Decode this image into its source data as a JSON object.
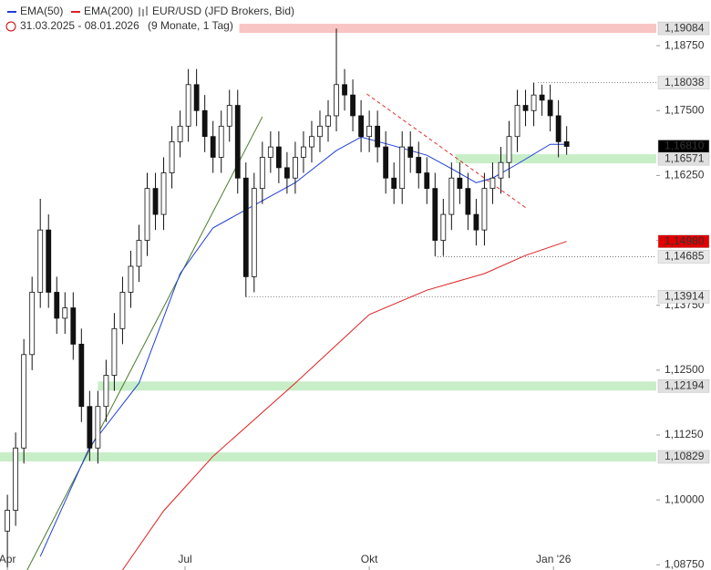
{
  "chart_data": {
    "type": "candlestick",
    "title": "EUR/USD (JFD Brokers, Bid)",
    "date_range": "31.03.2025 - 08.01.2026",
    "period": "(9 Monate, 1 Tag)",
    "xlim": [
      -0.9,
      78.9
    ],
    "ylim": [
      1.0865,
      1.1963
    ],
    "xticks": [
      {
        "value": 0,
        "label": "Apr"
      },
      {
        "value": 21.6,
        "label": "Jul"
      },
      {
        "value": 44,
        "label": "Okt"
      },
      {
        "value": 66.4,
        "label": "Jan '26"
      }
    ],
    "yticks": [
      {
        "value": 1.0875,
        "label": "1,08750"
      },
      {
        "value": 1.1,
        "label": "1,10000"
      },
      {
        "value": 1.1125,
        "label": "1,11250"
      },
      {
        "value": 1.125,
        "label": "1,12500"
      },
      {
        "value": 1.1375,
        "label": "1,13750"
      },
      {
        "value": 1.15,
        "label": "1,15000"
      },
      {
        "value": 1.1625,
        "label": "1,16250"
      },
      {
        "value": 1.175,
        "label": "1,17500"
      },
      {
        "value": 1.1875,
        "label": "1,18750"
      }
    ],
    "ohlc": [
      [
        1.094,
        1.101,
        1.087,
        1.098
      ],
      [
        1.098,
        1.113,
        1.095,
        1.11
      ],
      [
        1.11,
        1.131,
        1.107,
        1.128
      ],
      [
        1.128,
        1.143,
        1.125,
        1.14
      ],
      [
        1.14,
        1.158,
        1.137,
        1.152
      ],
      [
        1.152,
        1.155,
        1.137,
        1.14
      ],
      [
        1.14,
        1.143,
        1.132,
        1.135
      ],
      [
        1.135,
        1.14,
        1.132,
        1.137
      ],
      [
        1.137,
        1.14,
        1.127,
        1.13
      ],
      [
        1.13,
        1.133,
        1.115,
        1.118
      ],
      [
        1.118,
        1.121,
        1.1075,
        1.11
      ],
      [
        1.11,
        1.121,
        1.107,
        1.118
      ],
      [
        1.118,
        1.127,
        1.115,
        1.124
      ],
      [
        1.124,
        1.136,
        1.121,
        1.133
      ],
      [
        1.133,
        1.143,
        1.13,
        1.14
      ],
      [
        1.14,
        1.148,
        1.137,
        1.145
      ],
      [
        1.145,
        1.153,
        1.142,
        1.15
      ],
      [
        1.15,
        1.163,
        1.147,
        1.16
      ],
      [
        1.16,
        1.163,
        1.152,
        1.155
      ],
      [
        1.155,
        1.166,
        1.152,
        1.163
      ],
      [
        1.163,
        1.172,
        1.16,
        1.169
      ],
      [
        1.169,
        1.175,
        1.166,
        1.172
      ],
      [
        1.172,
        1.183,
        1.169,
        1.18
      ],
      [
        1.18,
        1.183,
        1.172,
        1.175
      ],
      [
        1.175,
        1.178,
        1.167,
        1.17
      ],
      [
        1.17,
        1.173,
        1.163,
        1.166
      ],
      [
        1.166,
        1.175,
        1.163,
        1.172
      ],
      [
        1.172,
        1.179,
        1.169,
        1.176
      ],
      [
        1.176,
        1.179,
        1.159,
        1.162
      ],
      [
        1.162,
        1.165,
        1.1391,
        1.143
      ],
      [
        1.143,
        1.163,
        1.14,
        1.16
      ],
      [
        1.16,
        1.169,
        1.157,
        1.166
      ],
      [
        1.166,
        1.171,
        1.163,
        1.168
      ],
      [
        1.168,
        1.171,
        1.161,
        1.164
      ],
      [
        1.164,
        1.167,
        1.159,
        1.162
      ],
      [
        1.162,
        1.169,
        1.159,
        1.166
      ],
      [
        1.166,
        1.171,
        1.163,
        1.168
      ],
      [
        1.168,
        1.173,
        1.165,
        1.17
      ],
      [
        1.17,
        1.175,
        1.167,
        1.172
      ],
      [
        1.172,
        1.177,
        1.169,
        1.174
      ],
      [
        1.174,
        1.1908,
        1.171,
        1.18
      ],
      [
        1.18,
        1.183,
        1.175,
        1.178
      ],
      [
        1.178,
        1.181,
        1.171,
        1.174
      ],
      [
        1.174,
        1.177,
        1.167,
        1.17
      ],
      [
        1.17,
        1.175,
        1.167,
        1.172
      ],
      [
        1.172,
        1.175,
        1.165,
        1.168
      ],
      [
        1.168,
        1.171,
        1.159,
        1.162
      ],
      [
        1.162,
        1.165,
        1.157,
        1.16
      ],
      [
        1.16,
        1.171,
        1.157,
        1.168
      ],
      [
        1.168,
        1.171,
        1.163,
        1.166
      ],
      [
        1.166,
        1.169,
        1.16,
        1.163
      ],
      [
        1.163,
        1.166,
        1.157,
        1.16
      ],
      [
        1.16,
        1.163,
        1.1469,
        1.15
      ],
      [
        1.15,
        1.158,
        1.147,
        1.155
      ],
      [
        1.155,
        1.165,
        1.152,
        1.162
      ],
      [
        1.162,
        1.165,
        1.157,
        1.16
      ],
      [
        1.16,
        1.163,
        1.152,
        1.155
      ],
      [
        1.155,
        1.158,
        1.149,
        1.152
      ],
      [
        1.152,
        1.163,
        1.149,
        1.16
      ],
      [
        1.16,
        1.165,
        1.157,
        1.162
      ],
      [
        1.162,
        1.168,
        1.159,
        1.165
      ],
      [
        1.165,
        1.173,
        1.162,
        1.17
      ],
      [
        1.17,
        1.179,
        1.167,
        1.176
      ],
      [
        1.176,
        1.179,
        1.172,
        1.175
      ],
      [
        1.175,
        1.1804,
        1.172,
        1.178
      ],
      [
        1.178,
        1.18,
        1.174,
        1.177
      ],
      [
        1.177,
        1.18,
        1.171,
        1.174
      ],
      [
        1.174,
        1.177,
        1.166,
        1.169
      ],
      [
        1.169,
        1.172,
        1.1665,
        1.1681
      ]
    ],
    "series": [
      {
        "name": "EMA(50)",
        "color": "#1f3fd6",
        "x": [
          4,
          10,
          16,
          21,
          25,
          29,
          35,
          40,
          43,
          47,
          51,
          54,
          57,
          59,
          62,
          66,
          68
        ],
        "values": [
          1.0891,
          1.1102,
          1.1225,
          1.1436,
          1.1524,
          1.1559,
          1.1611,
          1.1673,
          1.1699,
          1.1682,
          1.1664,
          1.1638,
          1.1611,
          1.162,
          1.1647,
          1.1685,
          1.1685
        ]
      },
      {
        "name": "EMA(200)",
        "color": "#e02020",
        "x": [
          14,
          19,
          25,
          35,
          44,
          51,
          58,
          63,
          68
        ],
        "values": [
          1.0865,
          1.0979,
          1.1084,
          1.1225,
          1.1357,
          1.1404,
          1.1436,
          1.1471,
          1.1498
        ]
      }
    ],
    "trendlines": [
      {
        "color": "#4a7a2a",
        "dash": false,
        "x": [
          2.4,
          31
        ],
        "y": [
          1.0865,
          1.1738
        ]
      },
      {
        "color": "#e03030",
        "dash": true,
        "x": [
          43.7,
          63.1
        ],
        "y": [
          1.1782,
          1.1562
        ]
      }
    ],
    "levels": [
      {
        "value": 1.19084,
        "label": "1,19084",
        "style": "zone",
        "color": "#f8c4c4",
        "from": 28.2
      },
      {
        "value": 1.18038,
        "label": "1,18038",
        "style": "dotted",
        "from": 64.5
      },
      {
        "value": 1.1681,
        "label": "1,16810",
        "style": "current"
      },
      {
        "value": 1.16571,
        "label": "1,16571",
        "style": "zone",
        "color": "#c8eec8",
        "from": 54.5
      },
      {
        "value": 1.1498,
        "label": "1,14980",
        "style": "ema",
        "color": "#e00000"
      },
      {
        "value": 1.14685,
        "label": "1,14685",
        "style": "dotted",
        "from": 52.3
      },
      {
        "value": 1.13914,
        "label": "1,13914",
        "style": "dotted",
        "from": 29
      },
      {
        "value": 1.12194,
        "label": "1,12194",
        "style": "zone",
        "color": "#c8eec8",
        "from": 11
      },
      {
        "value": 1.10829,
        "label": "1,10829",
        "style": "zone",
        "color": "#c8eec8",
        "from": -0.9
      }
    ]
  }
}
